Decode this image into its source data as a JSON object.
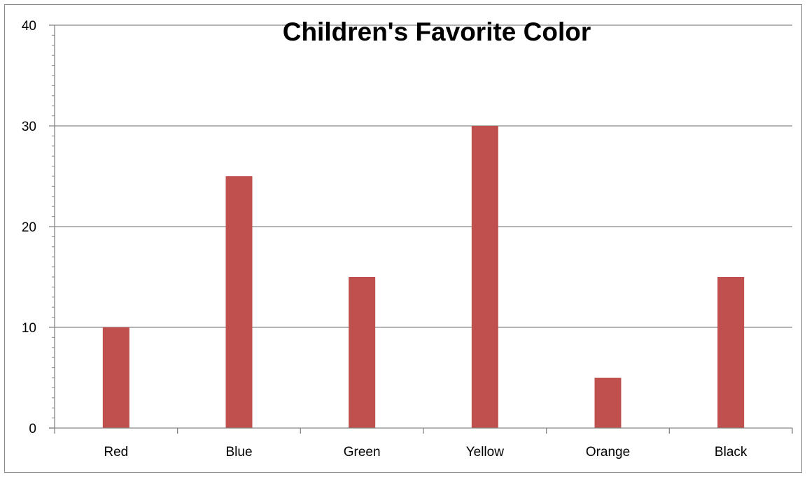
{
  "chart_data": {
    "type": "bar",
    "title": "Children's Favorite Color",
    "xlabel": "",
    "ylabel": "",
    "categories": [
      "Red",
      "Blue",
      "Green",
      "Yellow",
      "Orange",
      "Black"
    ],
    "series": [
      {
        "values": [
          10,
          25,
          15,
          30,
          5,
          15
        ]
      }
    ],
    "ylim": [
      0,
      40
    ],
    "yticks": [
      "0",
      "10",
      "20",
      "30",
      "40"
    ],
    "grid": true,
    "legend": "none",
    "bar_color": "#c0504d",
    "gridline_color": "#868686"
  }
}
